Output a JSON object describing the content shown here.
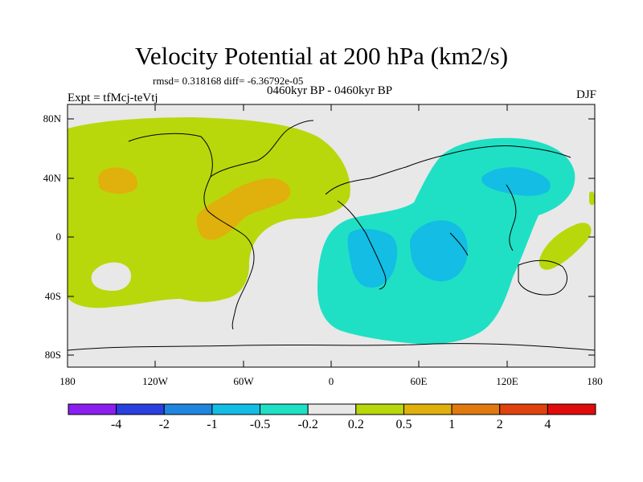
{
  "title": "Velocity Potential at 200 hPa (km2/s)",
  "stats": "rmsd= 0.318168 diff= -6.36792e-05",
  "subtitle": "0460kyr BP - 0460kyr BP",
  "experiment": "Expt = tfMcj-teVtj",
  "season": "DJF",
  "lat_labels": [
    "80N",
    "40N",
    "0",
    "40S",
    "80S"
  ],
  "lon_labels": [
    "180",
    "120W",
    "60W",
    "0",
    "60E",
    "120E",
    "180"
  ],
  "colorbar": {
    "labels": [
      "-4",
      "-2",
      "-1",
      "-0.5",
      "-0.2",
      "0.2",
      "0.5",
      "1",
      "2",
      "4"
    ],
    "colors": [
      "#8a1ff0",
      "#2a3fe0",
      "#1e86e0",
      "#13bde4",
      "#1fe0c4",
      "#e8e8e8",
      "#b8d80c",
      "#e0b00c",
      "#e07a10",
      "#e0420c",
      "#e00c0c"
    ]
  },
  "colors": {
    "neutral": "#e8e8e8",
    "positive_low": "#b8d80c",
    "positive_mid": "#e0b00c",
    "negative_low": "#1fe0c4",
    "negative_mid": "#13bde4"
  }
}
